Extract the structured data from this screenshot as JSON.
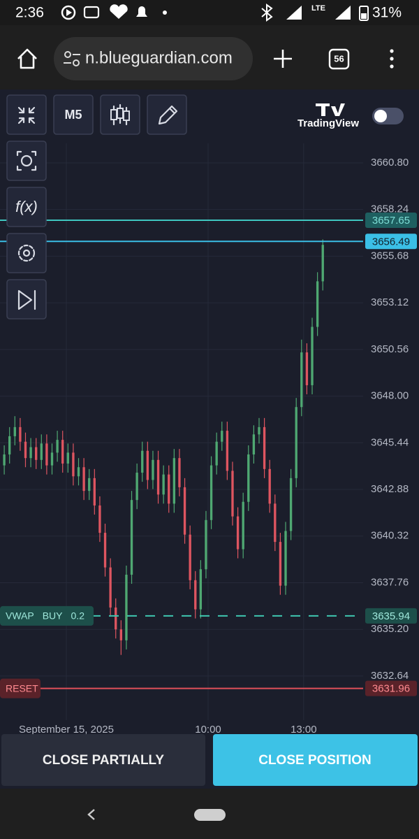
{
  "status_bar": {
    "time": "2:36",
    "network": "LTE",
    "battery": "31%"
  },
  "browser": {
    "url": "n.blueguardian.com",
    "tab_count": 56
  },
  "toolbar": {
    "interval": "M5",
    "indicators_icon": "f(x)",
    "brand": "TradingView"
  },
  "chart_data": {
    "type": "candlestick",
    "up_color": "#4fa872",
    "down_color": "#de5560",
    "grid": true,
    "open": [
      3644.2,
      3644.8,
      3645.8,
      3646.3,
      3645.5,
      3644.6,
      3645.2,
      3644.5,
      3645.4,
      3644.2,
      3644.9,
      3645.6,
      3644.3,
      3644.9,
      3643.6,
      3644.1,
      3642.8,
      3643.5,
      3642.0,
      3640.5,
      3638.6,
      3636.4,
      3635.2,
      3634.6,
      3638.2,
      3642.3,
      3643.8,
      3645.0,
      3643.4,
      3644.5,
      3642.6,
      3643.7,
      3642.1,
      3644.6,
      3643.0,
      3640.4,
      3637.9,
      3636.3,
      3638.5,
      3641.2,
      3644.2,
      3645.5,
      3646.1,
      3643.9,
      3641.4,
      3639.6,
      3642.2,
      3644.8,
      3645.9,
      3646.3,
      3644.0,
      3642.1,
      3640.0,
      3637.6,
      3640.6,
      3643.5,
      3647.4,
      3650.4,
      3648.6,
      3651.8,
      3654.3
    ],
    "high": [
      3645.3,
      3646.3,
      3646.9,
      3646.8,
      3646.0,
      3645.7,
      3645.7,
      3645.9,
      3645.9,
      3645.4,
      3646.1,
      3646.1,
      3645.4,
      3645.4,
      3644.6,
      3644.6,
      3644.0,
      3644.0,
      3642.5,
      3641.0,
      3639.1,
      3636.9,
      3635.7,
      3638.7,
      3642.8,
      3644.3,
      3645.5,
      3645.5,
      3645.0,
      3645.0,
      3644.2,
      3644.2,
      3645.1,
      3645.1,
      3643.5,
      3640.9,
      3638.4,
      3639.0,
      3641.7,
      3644.7,
      3646.0,
      3646.6,
      3646.6,
      3644.4,
      3641.9,
      3642.7,
      3645.3,
      3646.4,
      3646.8,
      3646.8,
      3644.5,
      3642.6,
      3640.5,
      3641.1,
      3644.0,
      3647.9,
      3651.1,
      3650.9,
      3652.3,
      3654.8,
      3656.6
    ],
    "low": [
      3643.7,
      3644.3,
      3645.3,
      3645.0,
      3644.1,
      3644.1,
      3644.0,
      3644.0,
      3643.7,
      3643.7,
      3644.4,
      3643.8,
      3643.8,
      3643.1,
      3643.1,
      3642.3,
      3642.3,
      3641.5,
      3640.0,
      3638.1,
      3635.9,
      3634.7,
      3633.8,
      3634.1,
      3637.7,
      3641.8,
      3643.3,
      3642.9,
      3642.9,
      3642.1,
      3642.1,
      3641.6,
      3641.6,
      3642.5,
      3639.9,
      3637.4,
      3635.8,
      3635.8,
      3638.0,
      3640.7,
      3643.7,
      3645.0,
      3643.4,
      3640.9,
      3639.1,
      3639.1,
      3641.7,
      3644.3,
      3645.4,
      3643.5,
      3641.6,
      3639.5,
      3637.1,
      3637.1,
      3640.1,
      3643.0,
      3646.9,
      3648.1,
      3648.1,
      3651.3,
      3653.8
    ],
    "close": [
      3644.8,
      3645.8,
      3646.3,
      3645.5,
      3644.6,
      3645.2,
      3644.5,
      3645.4,
      3644.2,
      3644.9,
      3645.6,
      3644.3,
      3644.9,
      3643.6,
      3644.1,
      3642.8,
      3643.5,
      3642.0,
      3640.5,
      3638.6,
      3636.4,
      3635.2,
      3634.6,
      3638.2,
      3642.3,
      3643.8,
      3645.0,
      3643.4,
      3644.5,
      3642.6,
      3643.7,
      3642.1,
      3644.6,
      3643.0,
      3640.4,
      3637.9,
      3636.3,
      3638.5,
      3641.2,
      3644.2,
      3645.5,
      3646.1,
      3643.9,
      3641.4,
      3639.6,
      3642.2,
      3644.8,
      3645.9,
      3646.3,
      3644.0,
      3642.1,
      3640.0,
      3637.6,
      3640.6,
      3643.5,
      3647.4,
      3650.4,
      3648.6,
      3651.8,
      3654.3,
      3656.3
    ],
    "xlim": [
      -0.8,
      67.6
    ],
    "xticks": [
      {
        "value": 11.7,
        "label": "September 15, 2025"
      },
      {
        "value": 38.4,
        "label": "10:00"
      },
      {
        "value": 56.4,
        "label": "13:00"
      }
    ],
    "ylim": [
      3630.22,
      3664.75
    ],
    "yticks": [
      {
        "value": 3660.8,
        "label": "3660.80"
      },
      3658.24,
      3655.68,
      3653.12,
      3650.56,
      {
        "value": 3648,
        "label": "3648.00"
      },
      3645.44,
      3642.88,
      3640.32,
      3637.76,
      {
        "value": 3635.2,
        "label": "3635.20"
      },
      3632.64
    ],
    "price_lines": [
      {
        "value": 3657.65,
        "color": "#3fc6c0",
        "label_bg": "#1e5f60",
        "label_color": "#7fe0d8"
      },
      {
        "value": 3656.49,
        "color": "#3bbfe6",
        "label_bg": "#3bbfe6",
        "label_color": "#10202a"
      },
      {
        "value": 3635.94,
        "color": "#3fc6b0",
        "label_bg": "#1d4f4a",
        "label_color": "#9fe8dc",
        "style": "dashed",
        "order": "VWAP",
        "side": "BUY",
        "volume": 0.2
      },
      {
        "value": 3631.96,
        "color": "#e0505a",
        "label_bg": "#5a2229",
        "label_color": "#ff8a90",
        "order": "RESET"
      }
    ]
  },
  "buttons": {
    "close_partially": "CLOSE PARTIALLY",
    "close_position": "CLOSE POSITION"
  }
}
